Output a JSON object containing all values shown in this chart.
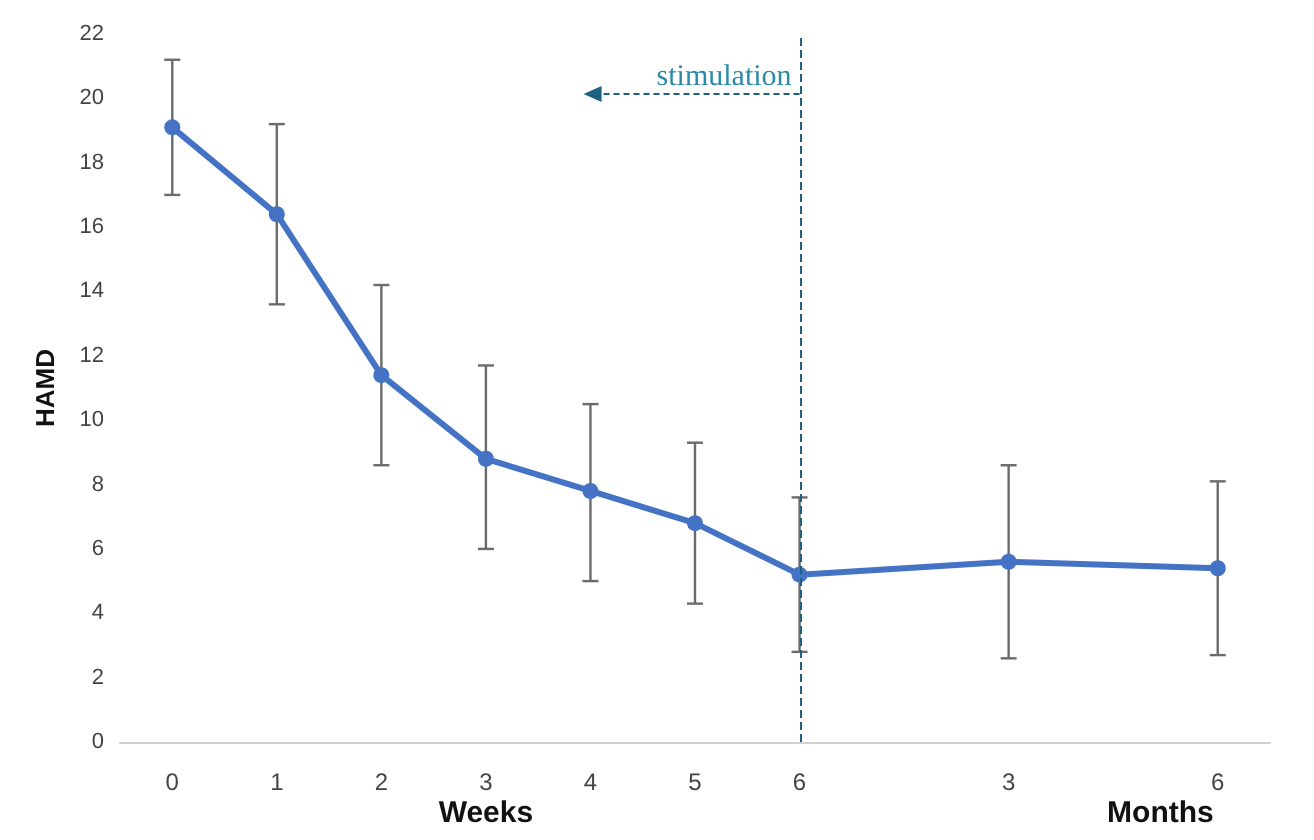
{
  "chart_data": {
    "type": "line",
    "xlabel": "Weeks",
    "ylabel": "HAMD",
    "categories": [
      "0",
      "1",
      "2",
      "3",
      "4",
      "5",
      "6",
      null,
      "3",
      null,
      "6"
    ],
    "series": [
      {
        "color": "#4472c4",
        "values": [
          19.1,
          16.4,
          11.4,
          8.8,
          7.8,
          6.8,
          5.2,
          null,
          5.6,
          null,
          5.4
        ],
        "errors": [
          [
            17.0,
            21.2
          ],
          [
            13.6,
            19.2
          ],
          [
            8.6,
            14.2
          ],
          [
            6.0,
            11.7
          ],
          [
            5.0,
            10.5
          ],
          [
            4.3,
            9.3
          ],
          [
            2.8,
            7.6
          ],
          null,
          [
            2.6,
            8.6
          ],
          null,
          [
            2.7,
            8.1
          ]
        ]
      }
    ],
    "ylim": [
      0,
      22
    ],
    "yticks": [
      0,
      2,
      4,
      6,
      8,
      10,
      12,
      14,
      16,
      18,
      20,
      22
    ],
    "ref_lines": [
      {
        "axis": "x",
        "value": "6",
        "label": "stimulation",
        "color": "#1f5f7f",
        "line_style": "dashed"
      }
    ],
    "annotations": [
      "Months"
    ],
    "marker": "circle",
    "line_style": "solid",
    "grid": false
  }
}
